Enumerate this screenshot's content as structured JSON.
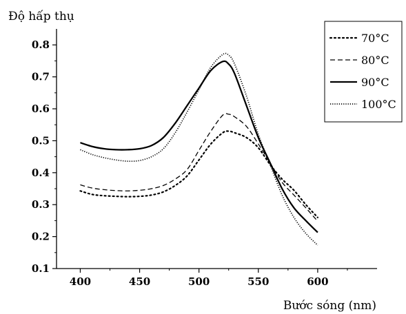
{
  "chart_data": {
    "type": "line",
    "title": "",
    "xlabel": "Bước sóng (nm)",
    "ylabel": "Độ hấp thụ",
    "xlim": [
      380,
      650
    ],
    "ylim": [
      0.1,
      0.85
    ],
    "xticks": [
      400,
      450,
      500,
      550,
      600
    ],
    "xtick_labels": [
      "400",
      "450",
      "500",
      "550",
      "600"
    ],
    "yticks": [
      0.1,
      0.2,
      0.3,
      0.4,
      0.5,
      0.6,
      0.7,
      0.8
    ],
    "ytick_labels": [
      "0.1",
      "0.2",
      "0.3",
      "0.4",
      "0.5",
      "0.6",
      "0.7",
      "0.8"
    ],
    "grid": false,
    "legend_position": "top-right",
    "series": [
      {
        "name": "70°C",
        "style": "dotted",
        "points": [
          [
            400,
            0.343
          ],
          [
            410,
            0.332
          ],
          [
            420,
            0.328
          ],
          [
            430,
            0.326
          ],
          [
            440,
            0.325
          ],
          [
            450,
            0.326
          ],
          [
            460,
            0.33
          ],
          [
            470,
            0.34
          ],
          [
            480,
            0.36
          ],
          [
            490,
            0.39
          ],
          [
            500,
            0.44
          ],
          [
            510,
            0.49
          ],
          [
            520,
            0.525
          ],
          [
            525,
            0.53
          ],
          [
            530,
            0.525
          ],
          [
            540,
            0.51
          ],
          [
            550,
            0.478
          ],
          [
            560,
            0.425
          ],
          [
            570,
            0.38
          ],
          [
            580,
            0.345
          ],
          [
            590,
            0.3
          ],
          [
            600,
            0.26
          ]
        ]
      },
      {
        "name": "80°C",
        "style": "dashed",
        "points": [
          [
            400,
            0.362
          ],
          [
            410,
            0.352
          ],
          [
            420,
            0.347
          ],
          [
            430,
            0.344
          ],
          [
            440,
            0.343
          ],
          [
            450,
            0.345
          ],
          [
            460,
            0.35
          ],
          [
            470,
            0.36
          ],
          [
            480,
            0.38
          ],
          [
            490,
            0.41
          ],
          [
            500,
            0.47
          ],
          [
            510,
            0.53
          ],
          [
            520,
            0.58
          ],
          [
            525,
            0.583
          ],
          [
            530,
            0.575
          ],
          [
            540,
            0.545
          ],
          [
            550,
            0.49
          ],
          [
            560,
            0.43
          ],
          [
            570,
            0.37
          ],
          [
            580,
            0.33
          ],
          [
            590,
            0.29
          ],
          [
            600,
            0.248
          ]
        ]
      },
      {
        "name": "90°C",
        "style": "solid",
        "points": [
          [
            400,
            0.494
          ],
          [
            410,
            0.482
          ],
          [
            420,
            0.475
          ],
          [
            430,
            0.472
          ],
          [
            440,
            0.472
          ],
          [
            450,
            0.475
          ],
          [
            460,
            0.485
          ],
          [
            470,
            0.51
          ],
          [
            480,
            0.555
          ],
          [
            490,
            0.61
          ],
          [
            500,
            0.665
          ],
          [
            510,
            0.72
          ],
          [
            520,
            0.748
          ],
          [
            525,
            0.74
          ],
          [
            530,
            0.71
          ],
          [
            540,
            0.61
          ],
          [
            550,
            0.51
          ],
          [
            560,
            0.43
          ],
          [
            570,
            0.35
          ],
          [
            580,
            0.29
          ],
          [
            590,
            0.25
          ],
          [
            600,
            0.213
          ]
        ]
      },
      {
        "name": "100°C",
        "style": "fine-dotted",
        "points": [
          [
            400,
            0.472
          ],
          [
            410,
            0.457
          ],
          [
            420,
            0.447
          ],
          [
            430,
            0.44
          ],
          [
            440,
            0.436
          ],
          [
            450,
            0.438
          ],
          [
            460,
            0.45
          ],
          [
            470,
            0.475
          ],
          [
            480,
            0.525
          ],
          [
            490,
            0.59
          ],
          [
            500,
            0.66
          ],
          [
            510,
            0.73
          ],
          [
            520,
            0.77
          ],
          [
            525,
            0.768
          ],
          [
            530,
            0.74
          ],
          [
            540,
            0.64
          ],
          [
            550,
            0.52
          ],
          [
            560,
            0.425
          ],
          [
            570,
            0.33
          ],
          [
            580,
            0.26
          ],
          [
            590,
            0.21
          ],
          [
            600,
            0.173
          ]
        ]
      }
    ]
  }
}
